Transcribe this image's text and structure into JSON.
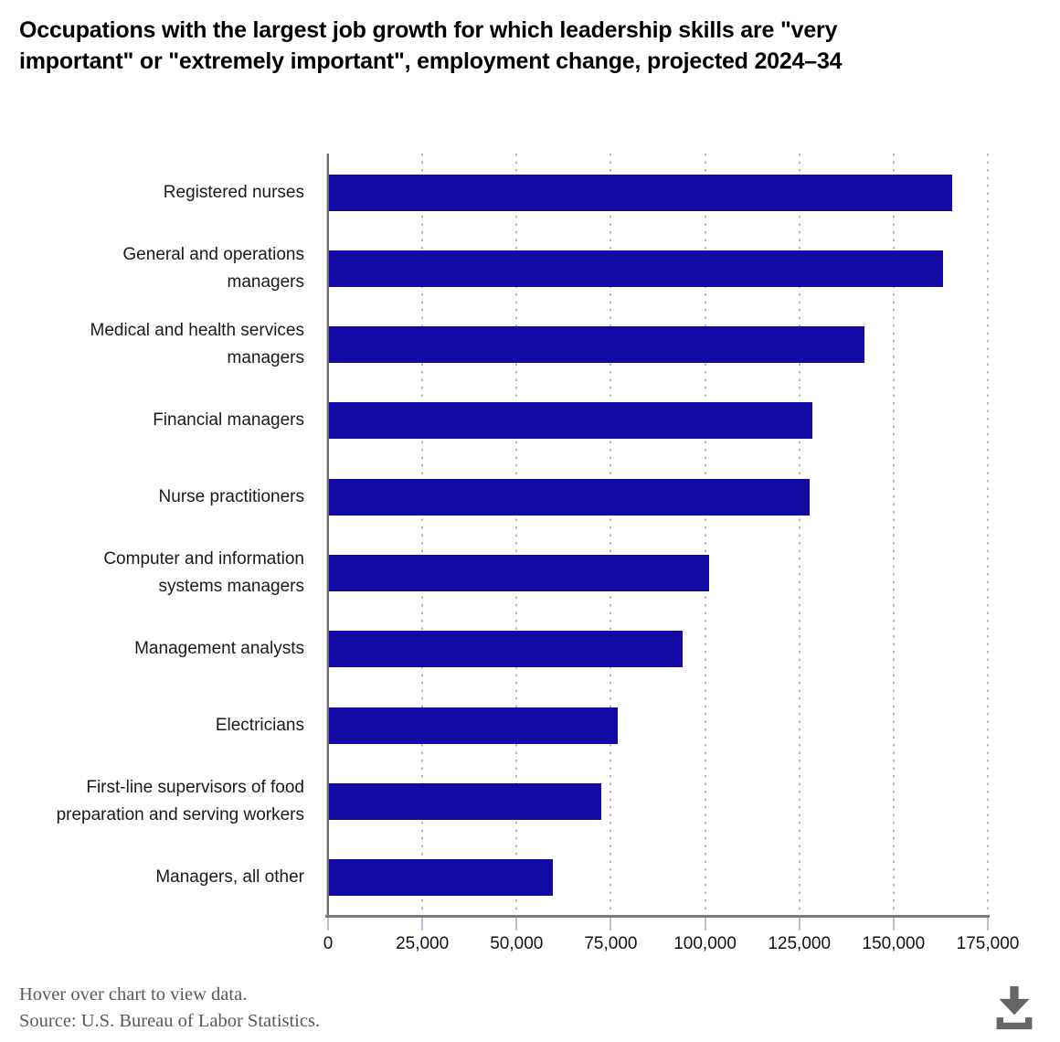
{
  "title": {
    "line1": "Occupations with the largest job growth for which leadership skills are \"very",
    "line2": "important\" or \"extremely important\", employment change, projected 2024–34",
    "full": "Occupations with the largest job growth for which leadership skills are \"very important\" or \"extremely important\", employment change, projected 2024–34"
  },
  "chart_data": {
    "type": "bar",
    "orientation": "horizontal",
    "title": "Occupations with the largest job growth for which leadership skills are \"very important\" or \"extremely important\", employment change, projected 2024–34",
    "categories": [
      "Registered nurses",
      "General and operations managers",
      "Medical and health services managers",
      "Financial managers",
      "Nurse practitioners",
      "Computer and information systems managers",
      "Management analysts",
      "Electricians",
      "First-line supervisors of food preparation and serving workers",
      "Managers, all other"
    ],
    "values": [
      165200,
      162900,
      142100,
      128100,
      127600,
      100900,
      93700,
      76700,
      72300,
      59300
    ],
    "value_unit": "employment change, number of jobs (estimated from gridlines)",
    "xlabel": "",
    "ylabel": "",
    "xlim": [
      0,
      175000
    ],
    "xticks": [
      0,
      25000,
      50000,
      75000,
      100000,
      125000,
      150000,
      175000
    ],
    "xtick_labels": [
      "0",
      "25,000",
      "50,000",
      "75,000",
      "100,000",
      "125,000",
      "150,000",
      "175,000"
    ],
    "grid": "vertical dotted",
    "legend": "none",
    "bar_color": "#130aa5"
  },
  "footer": {
    "hover_note": "Hover over chart to view data.",
    "source": "Source: U.S. Bureau of Labor Statistics."
  },
  "icons": {
    "download": "download-icon"
  },
  "colors": {
    "bar": "#130aa5",
    "axis": "#7a7a7a",
    "gridline": "#b9b9b9",
    "tick_mark": "#aec3d6",
    "title_text": "#000000",
    "category_text": "#1a1a1a",
    "tick_label_text": "#111111",
    "footer_text": "#58585a",
    "download_icon": "#666666",
    "background": "#ffffff"
  }
}
